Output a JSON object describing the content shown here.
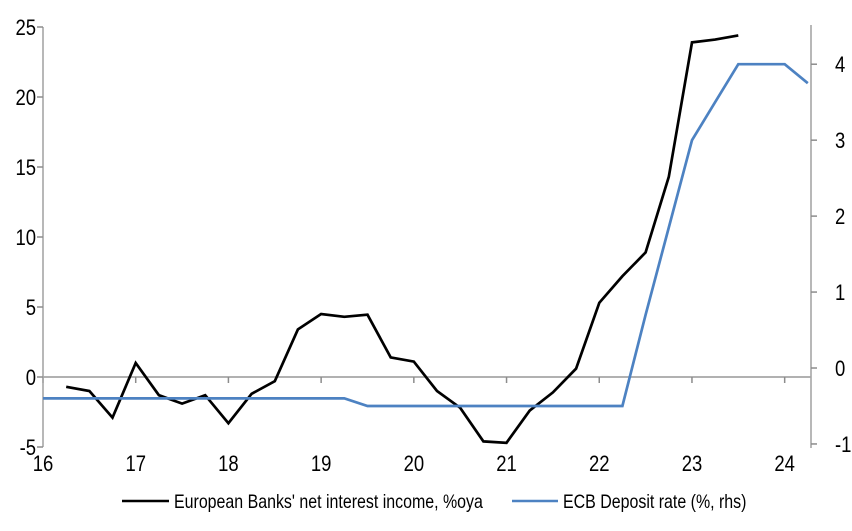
{
  "figure": {
    "background": "#ffffff"
  },
  "colors": {
    "axis": "#a6a6a6",
    "zero_line": "#a6a6a6",
    "tick": "#8c8c8c",
    "nii_line": "#000000",
    "ecb_line": "#4d82c2",
    "text": "#000000"
  },
  "legend": {
    "items": [
      {
        "label": "European Banks' net interest income, %oya",
        "color": "#000000"
      },
      {
        "label": "ECB Deposit rate (%, rhs)",
        "color": "#4d82c2"
      }
    ]
  },
  "chart_data": {
    "type": "line",
    "title": "",
    "grid": "zero-line-only",
    "legend_position": "bottom",
    "x_axis": {
      "label": "",
      "min": 16,
      "max": 24.284,
      "ticks": [
        16,
        17,
        18,
        19,
        20,
        21,
        22,
        23,
        24
      ],
      "tick_labels": [
        "16",
        "17",
        "18",
        "19",
        "20",
        "21",
        "22",
        "23",
        "24"
      ]
    },
    "left_axis": {
      "label": "",
      "min": -5,
      "max": 25,
      "ticks": [
        -5,
        0,
        5,
        10,
        15,
        20,
        25
      ],
      "tick_labels": [
        "-5",
        "0",
        "5",
        "10",
        "15",
        "20",
        "25"
      ]
    },
    "right_axis": {
      "label": "",
      "min": -1.04,
      "max": 4.49,
      "ticks": [
        -1,
        0,
        1,
        2,
        3,
        4
      ],
      "tick_labels": [
        "-1",
        "0",
        "1",
        "2",
        "3",
        "4"
      ]
    },
    "series": [
      {
        "name": "European Banks' net interest income, %oya",
        "axis": "left",
        "color": "#000000",
        "x": [
          16.25,
          16.5,
          16.75,
          17.0,
          17.25,
          17.5,
          17.75,
          18.0,
          18.25,
          18.5,
          18.75,
          19.0,
          19.25,
          19.5,
          19.75,
          20.0,
          20.25,
          20.5,
          20.75,
          21.0,
          21.25,
          21.5,
          21.75,
          22.0,
          22.25,
          22.5,
          22.75,
          23.0,
          23.25,
          23.5
        ],
        "values": [
          -0.7,
          -1.0,
          -2.9,
          1.0,
          -1.3,
          -1.9,
          -1.3,
          -3.3,
          -1.2,
          -0.3,
          3.4,
          4.5,
          4.3,
          4.45,
          1.4,
          1.1,
          -1.0,
          -2.2,
          -4.6,
          -4.7,
          -2.4,
          -1.1,
          0.6,
          5.3,
          7.2,
          8.9,
          14.3,
          23.9,
          24.1,
          24.4
        ]
      },
      {
        "name": "ECB Deposit rate (%, rhs)",
        "axis": "right",
        "color": "#4d82c2",
        "x": [
          16.0,
          16.25,
          16.5,
          16.75,
          17.0,
          17.25,
          17.5,
          17.75,
          18.0,
          18.25,
          18.5,
          18.75,
          19.0,
          19.25,
          19.5,
          19.75,
          20.0,
          20.25,
          20.5,
          20.75,
          21.0,
          21.25,
          21.5,
          21.75,
          22.0,
          22.25,
          22.5,
          22.75,
          23.0,
          23.25,
          23.5,
          23.75,
          24.0,
          24.25
        ],
        "values": [
          -0.4,
          -0.4,
          -0.4,
          -0.4,
          -0.4,
          -0.4,
          -0.4,
          -0.4,
          -0.4,
          -0.4,
          -0.4,
          -0.4,
          -0.4,
          -0.4,
          -0.5,
          -0.5,
          -0.5,
          -0.5,
          -0.5,
          -0.5,
          -0.5,
          -0.5,
          -0.5,
          -0.5,
          -0.5,
          -0.5,
          0.7,
          1.85,
          3.0,
          3.5,
          4.0,
          4.0,
          4.0,
          3.75
        ]
      }
    ]
  }
}
